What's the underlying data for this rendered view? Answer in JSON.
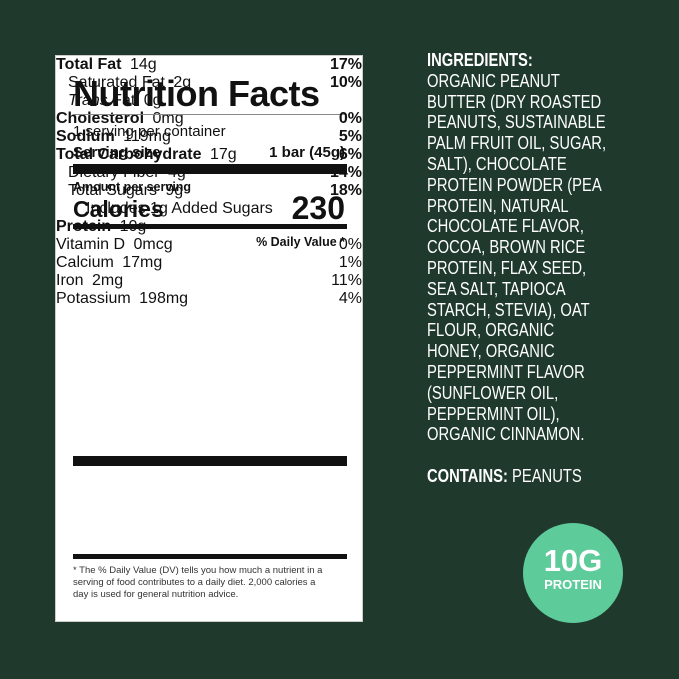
{
  "label": {
    "title": "Nutrition Facts",
    "servings": "1 serving per container",
    "serving_size_label": "Serving size",
    "serving_size": "1 bar (45g)",
    "amount_per_serving": "Amount per serving",
    "calories_label": "Calories",
    "calories": "230",
    "dv_header": "% Daily Value *",
    "nutrients": [
      {
        "name": "Total Fat",
        "amount": "14g",
        "dv": "17%",
        "sub": [
          {
            "name": "Saturated Fat",
            "amount": "2g",
            "dv": "10%"
          },
          {
            "name_italic": "Trans",
            "name": "Fat",
            "amount": "0g"
          }
        ]
      },
      {
        "name": "Cholesterol",
        "amount": "0mg",
        "dv": "0%"
      },
      {
        "name": "Sodium",
        "amount": "119mg",
        "dv": "5%"
      },
      {
        "name": "Total Carbohydrate",
        "amount": "17g",
        "dv": "6%",
        "sub": [
          {
            "name": "Dietary Fiber",
            "amount": "4g",
            "dv": "14%"
          },
          {
            "name": "Total Sugars",
            "amount": "9g",
            "dv": "18%",
            "note": "Includes 1g Added Sugars"
          }
        ]
      },
      {
        "name": "Protein",
        "amount": "10g"
      }
    ],
    "vitamins": [
      {
        "name": "Vitamin D",
        "amount": "0mcg",
        "dv": "0%"
      },
      {
        "name": "Calcium",
        "amount": "17mg",
        "dv": "1%"
      },
      {
        "name": "Iron",
        "amount": "2mg",
        "dv": "11%"
      },
      {
        "name": "Potassium",
        "amount": "198mg",
        "dv": "4%"
      }
    ],
    "footnote": [
      "* The % Daily Value (DV) tells you how much a nutrient in a",
      "serving of food contributes to a daily diet. 2,000 calories a",
      "day is used for general nutrition advice."
    ]
  },
  "ingredients": {
    "heading": "INGREDIENTS:",
    "lines": [
      "ORGANIC PEANUT",
      "BUTTER (DRY ROASTED",
      "PEANUTS, SUSTAINABLE",
      "PALM FRUIT OIL, SUGAR,",
      "SALT), CHOCOLATE",
      "PROTEIN POWDER (PEA",
      "PROTEIN, NATURAL",
      "CHOCOLATE FLAVOR,",
      "COCOA, BROWN RICE",
      "PROTEIN, FLAX SEED,",
      "SEA SALT, TAPIOCA",
      "STARCH, STEVIA), OAT",
      "FLOUR, ORGANIC",
      "HONEY, ORGANIC",
      "PEPPERMINT FLAVOR",
      "(SUNFLOWER OIL,",
      "PEPPERMINT OIL),",
      "ORGANIC CINNAMON."
    ],
    "contains_label": "CONTAINS:",
    "contains": "PEANUTS"
  },
  "badge": {
    "value": "10G",
    "label": "PROTEIN"
  }
}
